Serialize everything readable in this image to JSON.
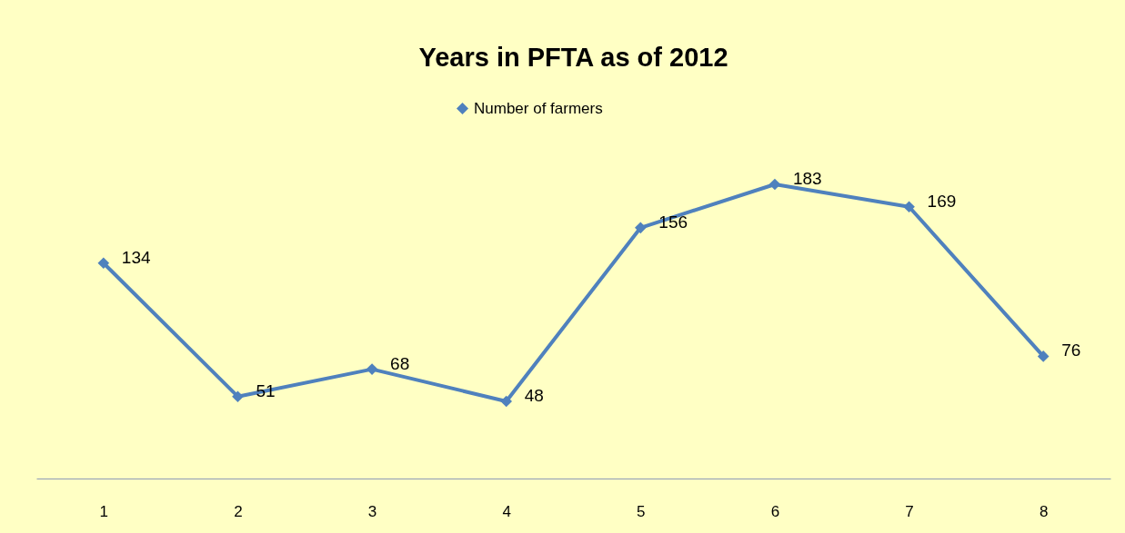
{
  "chart_data": {
    "type": "line",
    "title": "Years in PFTA as of 2012",
    "categories": [
      "1",
      "2",
      "3",
      "4",
      "5",
      "6",
      "7",
      "8"
    ],
    "series": [
      {
        "name": "Number of farmers",
        "color": "#4f81bd",
        "values": [
          134,
          51,
          68,
          48,
          156,
          183,
          169,
          76
        ]
      }
    ],
    "data_labels": true,
    "marker": "diamond",
    "legend": "top",
    "grid": false
  }
}
